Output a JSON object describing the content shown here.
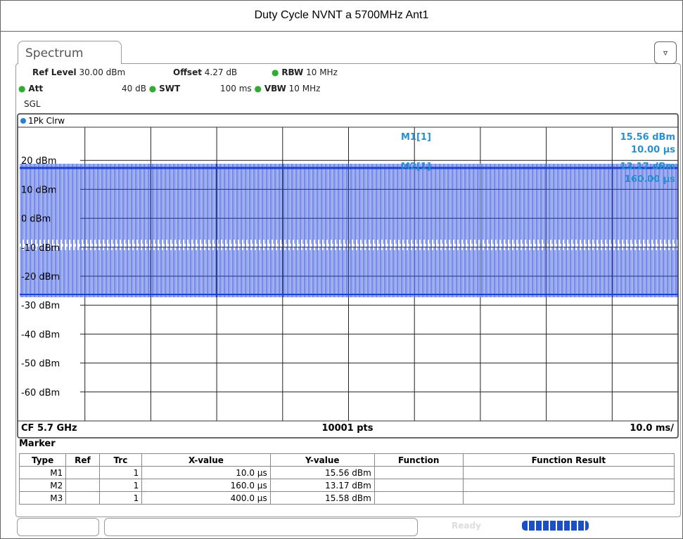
{
  "title": "Duty Cycle NVNT a 5700MHz Ant1",
  "tab": "Spectrum",
  "settings": {
    "row1": [
      {
        "label": "Ref Level",
        "value": "30.00 dBm"
      },
      {
        "label": "Offset",
        "value": "4.27 dB"
      },
      {
        "label": "RBW",
        "value": "10 MHz"
      }
    ],
    "row2": [
      {
        "label": "Att",
        "value": "40 dB"
      },
      {
        "label": "SWT",
        "value": "100 ms"
      },
      {
        "label": "VBW",
        "value": "10 MHz"
      }
    ],
    "mode": "SGL"
  },
  "trace_label": "1Pk Clrw",
  "y_labels": [
    "20 dBm",
    "10 dBm",
    "0 dBm",
    "-10 dBm",
    "-20 dBm",
    "-30 dBm",
    "-40 dBm",
    "-50 dBm",
    "-60 dBm"
  ],
  "marker_readouts": [
    {
      "name": "M1[1]",
      "y": "15.56 dBm",
      "x": "10.00 µs"
    },
    {
      "name": "M2[1]",
      "y": "13.17 dBm",
      "x": "160.00 µs"
    }
  ],
  "footer": {
    "cf": "CF 5.7 GHz",
    "pts": "10001 pts",
    "span": "10.0 ms/"
  },
  "table": {
    "title": "Marker",
    "headers": [
      "Type",
      "Ref",
      "Trc",
      "X-value",
      "Y-value",
      "Function",
      "Function Result"
    ],
    "rows": [
      [
        "M1",
        "",
        "1",
        "10.0 µs",
        "15.56 dBm",
        "",
        ""
      ],
      [
        "M2",
        "",
        "1",
        "160.0 µs",
        "13.17 dBm",
        "",
        ""
      ],
      [
        "M3",
        "",
        "1",
        "400.0 µs",
        "15.58 dBm",
        "",
        ""
      ]
    ]
  },
  "status": "Ready"
}
